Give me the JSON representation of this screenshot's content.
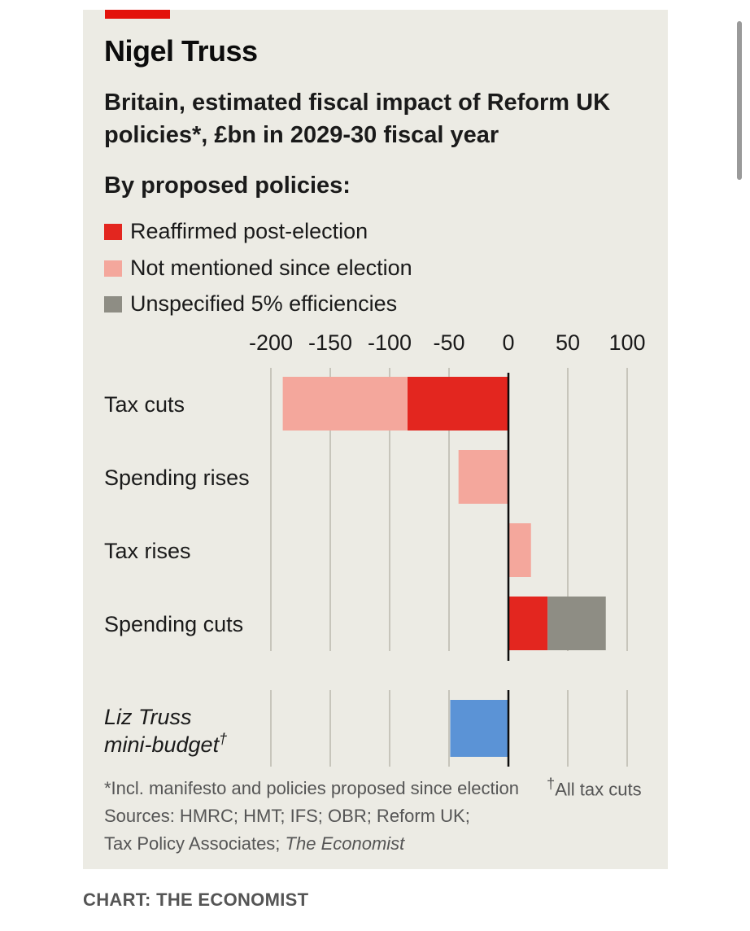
{
  "title": "Nigel Truss",
  "subtitle": "Britain, estimated fiscal impact of Reform UK policies*, £bn in 2029-30 fiscal year",
  "legend": {
    "title": "By proposed policies:",
    "items": [
      {
        "label": "Reaffirmed post-election",
        "color": "#e3261f"
      },
      {
        "label": "Not mentioned since election",
        "color": "#f4a79c"
      },
      {
        "label": "Unspecified 5% efficiencies",
        "color": "#8e8d84"
      }
    ]
  },
  "chart_data": {
    "type": "bar",
    "orientation": "horizontal",
    "stacked": true,
    "xlim": [
      -200,
      100
    ],
    "xticks": [
      "-200",
      "-150",
      "-100",
      "-50",
      "0",
      "50",
      "100"
    ],
    "xtick_values": [
      -200,
      -150,
      -100,
      -50,
      0,
      50,
      100
    ],
    "grid": true,
    "categories": [
      "Tax cuts",
      "Spending rises",
      "Tax rises",
      "Spending cuts"
    ],
    "series": [
      {
        "name": "Reaffirmed post-election",
        "color": "#e3261f",
        "values": [
          -85,
          0,
          0,
          33
        ]
      },
      {
        "name": "Not mentioned since election",
        "color": "#f4a79c",
        "values": [
          -105,
          -42,
          19,
          0
        ]
      },
      {
        "name": "Unspecified 5% efficiencies",
        "color": "#8e8d84",
        "values": [
          0,
          0,
          0,
          49
        ]
      }
    ],
    "comparison": {
      "label": "Liz Truss",
      "label_line2": "mini-budget",
      "label_marker": "†",
      "value": -49,
      "color": "#5b93d6"
    }
  },
  "notes": {
    "footnote": "*Incl. manifesto and policies proposed since election",
    "dagger_marker": "†",
    "dagger_note": "All tax cuts",
    "sources": "Sources: HMRC; HMT; IFS; OBR; Reform UK;",
    "sources_line2": "Tax Policy Associates; ",
    "sources_italic": "The Economist"
  },
  "credit": "CHART: THE ECONOMIST"
}
